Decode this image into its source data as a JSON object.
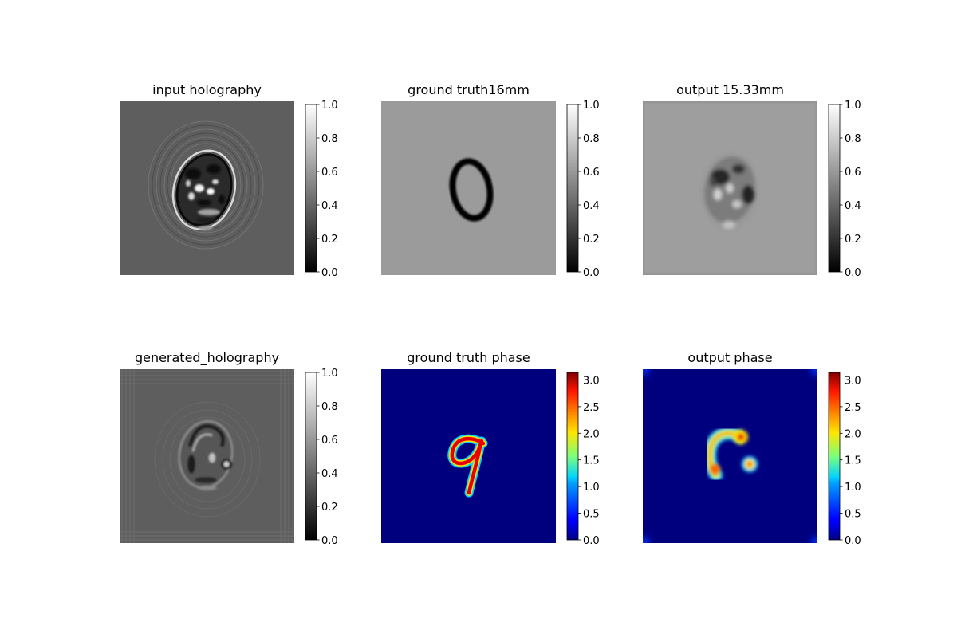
{
  "figure": {
    "background": "#ffffff",
    "panels": [
      {
        "title": "input holography",
        "image": "holography-gray",
        "colormap": "gray",
        "range": [
          0,
          1
        ]
      },
      {
        "title": "ground truth16mm",
        "image": "digit-zero-amplitude",
        "colormap": "gray",
        "range": [
          0,
          1
        ]
      },
      {
        "title": "output 15.33mm",
        "image": "reconstructed-amplitude",
        "colormap": "gray",
        "range": [
          0,
          1
        ]
      },
      {
        "title": "generated_holography",
        "image": "generated-holography-gray",
        "colormap": "gray",
        "range": [
          0,
          1
        ]
      },
      {
        "title": "ground truth phase",
        "image": "digit-nine-phase",
        "colormap": "jet",
        "range": [
          0,
          3.14
        ]
      },
      {
        "title": "output phase",
        "image": "reconstructed-phase",
        "colormap": "jet",
        "range": [
          0,
          3.14
        ]
      }
    ]
  },
  "chart_data": [
    {
      "type": "heatmap",
      "title": "input holography",
      "colormap": "gray",
      "colorbar": {
        "range": [
          0,
          1
        ],
        "ticks": [
          "0.0",
          "0.2",
          "0.4",
          "0.6",
          "0.8",
          "1.0"
        ]
      }
    },
    {
      "type": "heatmap",
      "title": "ground truth16mm",
      "colormap": "gray",
      "colorbar": {
        "range": [
          0,
          1
        ],
        "ticks": [
          "0.0",
          "0.2",
          "0.4",
          "0.6",
          "0.8",
          "1.0"
        ]
      }
    },
    {
      "type": "heatmap",
      "title": "output 15.33mm",
      "colormap": "gray",
      "colorbar": {
        "range": [
          0,
          1
        ],
        "ticks": [
          "0.0",
          "0.2",
          "0.4",
          "0.6",
          "0.8",
          "1.0"
        ]
      }
    },
    {
      "type": "heatmap",
      "title": "generated_holography",
      "colormap": "gray",
      "colorbar": {
        "range": [
          0,
          1
        ],
        "ticks": [
          "0.0",
          "0.2",
          "0.4",
          "0.6",
          "0.8",
          "1.0"
        ]
      }
    },
    {
      "type": "heatmap",
      "title": "ground truth phase",
      "colormap": "jet",
      "colorbar": {
        "range": [
          0,
          3.14
        ],
        "ticks": [
          "0.0",
          "0.5",
          "1.0",
          "1.5",
          "2.0",
          "2.5",
          "3.0"
        ]
      }
    },
    {
      "type": "heatmap",
      "title": "output phase",
      "colormap": "jet",
      "colorbar": {
        "range": [
          0,
          3.14
        ],
        "ticks": [
          "0.0",
          "0.5",
          "1.0",
          "1.5",
          "2.0",
          "2.5",
          "3.0"
        ]
      }
    }
  ]
}
